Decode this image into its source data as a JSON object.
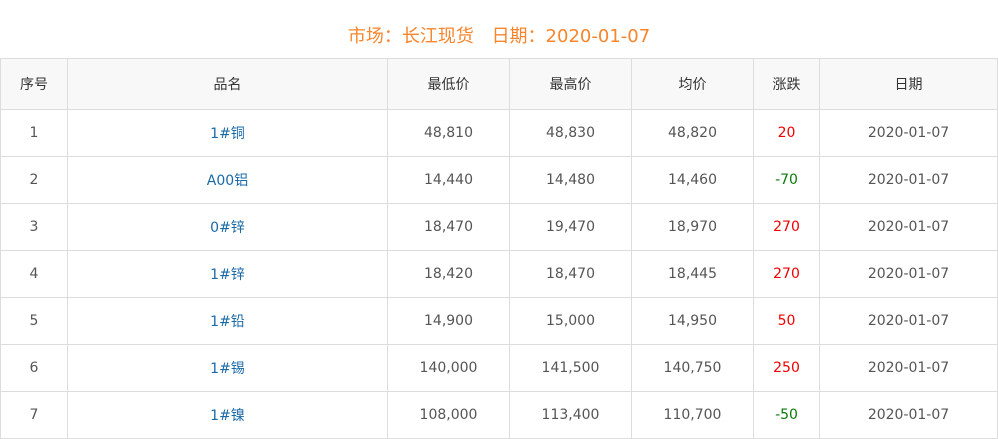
{
  "header": {
    "market_label": "市场：长江现货",
    "date_label": "日期：2020-01-07"
  },
  "colors": {
    "title": "#f7852b",
    "up": "#ee0000",
    "down": "#0a7a0a",
    "name_link": "#1a6aa8"
  },
  "columns": [
    "序号",
    "品名",
    "最低价",
    "最高价",
    "均价",
    "涨跌",
    "日期"
  ],
  "rows": [
    {
      "no": "1",
      "name": "1#铜",
      "low": "48,810",
      "high": "48,830",
      "avg": "48,820",
      "change": "20",
      "date": "2020-01-07"
    },
    {
      "no": "2",
      "name": "A00铝",
      "low": "14,440",
      "high": "14,480",
      "avg": "14,460",
      "change": "-70",
      "date": "2020-01-07"
    },
    {
      "no": "3",
      "name": "0#锌",
      "low": "18,470",
      "high": "19,470",
      "avg": "18,970",
      "change": "270",
      "date": "2020-01-07"
    },
    {
      "no": "4",
      "name": "1#锌",
      "low": "18,420",
      "high": "18,470",
      "avg": "18,445",
      "change": "270",
      "date": "2020-01-07"
    },
    {
      "no": "5",
      "name": "1#铅",
      "low": "14,900",
      "high": "15,000",
      "avg": "14,950",
      "change": "50",
      "date": "2020-01-07"
    },
    {
      "no": "6",
      "name": "1#锡",
      "low": "140,000",
      "high": "141,500",
      "avg": "140,750",
      "change": "250",
      "date": "2020-01-07"
    },
    {
      "no": "7",
      "name": "1#镍",
      "low": "108,000",
      "high": "113,400",
      "avg": "110,700",
      "change": "-50",
      "date": "2020-01-07"
    }
  ]
}
